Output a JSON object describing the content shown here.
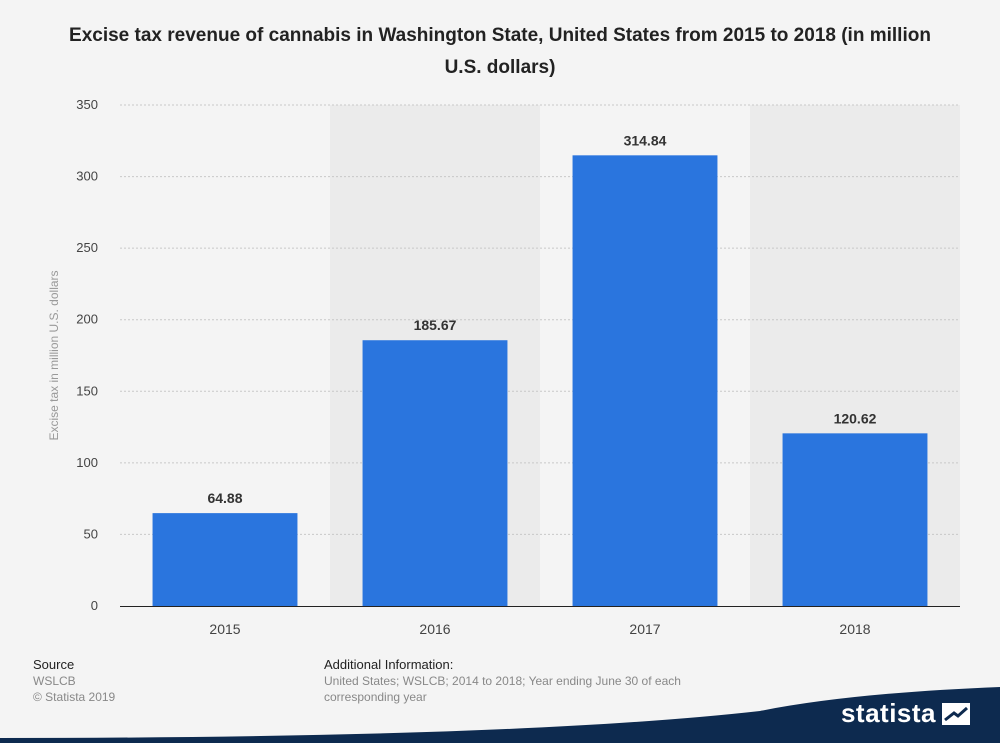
{
  "chart_data": {
    "type": "bar",
    "title": "Excise tax revenue of cannabis in Washington State, United States from 2015 to 2018 (in million U.S. dollars)",
    "xlabel": "",
    "ylabel": "Excise tax in million U.S. dollars",
    "categories": [
      "2015",
      "2016",
      "2017",
      "2018"
    ],
    "values": [
      64.88,
      185.67,
      314.84,
      120.62
    ],
    "value_labels": [
      "64.88",
      "185.67",
      "314.84",
      "120.62"
    ],
    "ylim": [
      0,
      350
    ],
    "yticks": [
      0,
      50,
      100,
      150,
      200,
      250,
      300,
      350
    ],
    "grid": true,
    "bar_color": "#2a75de",
    "band_color": "#ebebeb"
  },
  "footer": {
    "source_heading": "Source",
    "source_name": "WSLCB",
    "copyright": "© Statista 2019",
    "additional_heading": "Additional Information:",
    "additional_text": "United States; WSLCB; 2014 to 2018; Year ending June 30 of each corresponding year"
  },
  "brand": {
    "logo_text": "statista",
    "logo_icon": "statista-logo-icon",
    "band_color": "#0d2a4f"
  }
}
